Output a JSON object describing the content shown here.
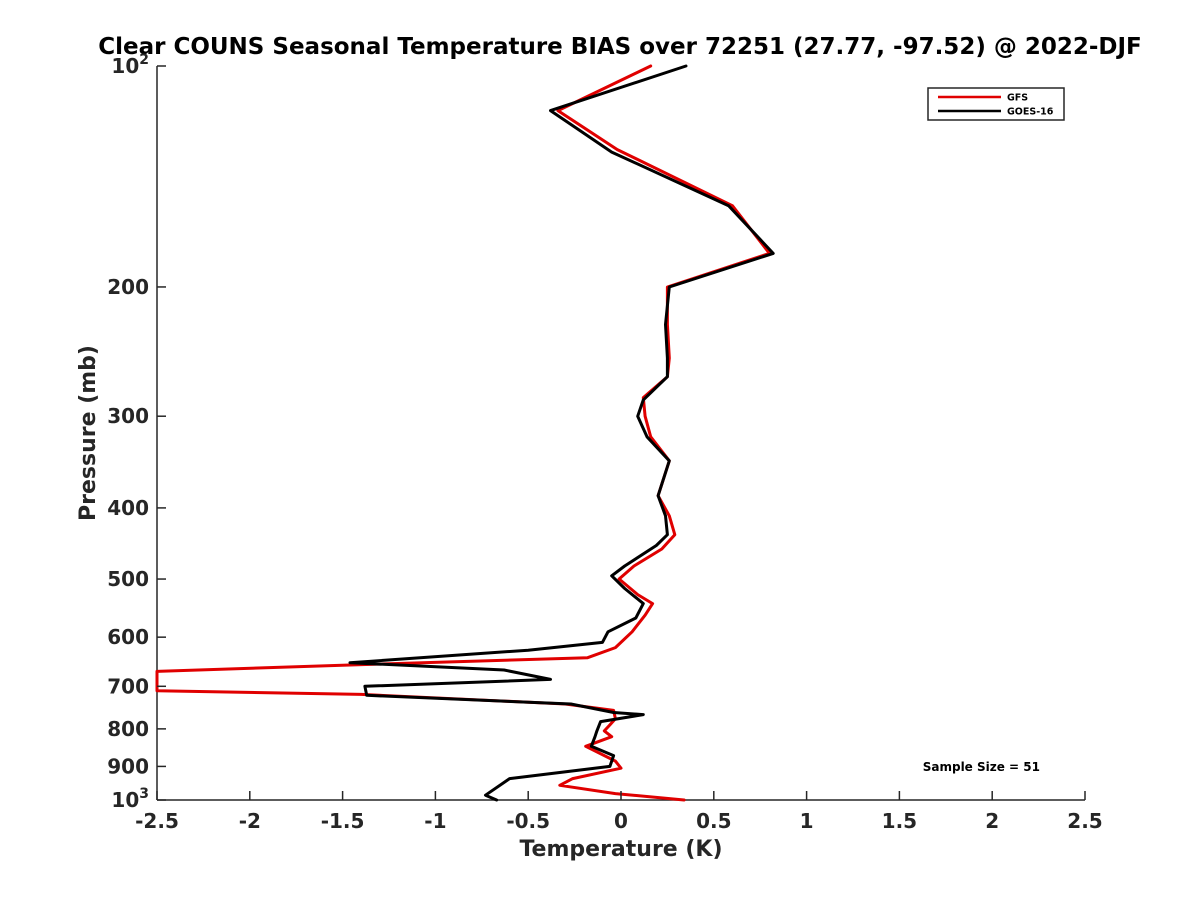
{
  "chart_data": {
    "type": "line",
    "title": "Clear COUNS Seasonal Temperature BIAS over 72251 (27.77, -97.52) @ 2022-DJF",
    "xlabel": "Temperature (K)",
    "ylabel": "Pressure (mb)",
    "xlim": [
      -2.5,
      2.5
    ],
    "ylim": [
      100,
      1000
    ],
    "y_scale": "log",
    "y_reversed": true,
    "grid": false,
    "legend_position": "top-right",
    "x_ticks": [
      {
        "value": -2.5,
        "label": "-2.5"
      },
      {
        "value": -2,
        "label": "-2"
      },
      {
        "value": -1.5,
        "label": "-1.5"
      },
      {
        "value": -1,
        "label": "-1"
      },
      {
        "value": -0.5,
        "label": "-0.5"
      },
      {
        "value": 0,
        "label": "0"
      },
      {
        "value": 0.5,
        "label": "0.5"
      },
      {
        "value": 1,
        "label": "1"
      },
      {
        "value": 1.5,
        "label": "1.5"
      },
      {
        "value": 2,
        "label": "2"
      },
      {
        "value": 2.5,
        "label": "2.5"
      }
    ],
    "y_ticks": [
      {
        "value": 100,
        "base": "10",
        "exp": "2"
      },
      {
        "value": 200,
        "label": "200"
      },
      {
        "value": 300,
        "label": "300"
      },
      {
        "value": 400,
        "label": "400"
      },
      {
        "value": 500,
        "label": "500"
      },
      {
        "value": 600,
        "label": "600"
      },
      {
        "value": 700,
        "label": "700"
      },
      {
        "value": 800,
        "label": "800"
      },
      {
        "value": 900,
        "label": "900"
      },
      {
        "value": 1000,
        "base": "10",
        "exp": "3"
      }
    ],
    "series": [
      {
        "name": "GFS",
        "color": "#e00000",
        "points": [
          {
            "x": 0.16,
            "y": 100
          },
          {
            "x": -0.34,
            "y": 115
          },
          {
            "x": -0.02,
            "y": 130
          },
          {
            "x": 0.6,
            "y": 155
          },
          {
            "x": 0.8,
            "y": 180
          },
          {
            "x": 0.25,
            "y": 200
          },
          {
            "x": 0.25,
            "y": 225
          },
          {
            "x": 0.26,
            "y": 250
          },
          {
            "x": 0.25,
            "y": 265
          },
          {
            "x": 0.12,
            "y": 283
          },
          {
            "x": 0.13,
            "y": 300
          },
          {
            "x": 0.16,
            "y": 320
          },
          {
            "x": 0.26,
            "y": 345
          },
          {
            "x": 0.2,
            "y": 385
          },
          {
            "x": 0.26,
            "y": 410
          },
          {
            "x": 0.29,
            "y": 435
          },
          {
            "x": 0.22,
            "y": 455
          },
          {
            "x": 0.07,
            "y": 480
          },
          {
            "x": -0.01,
            "y": 500
          },
          {
            "x": 0.09,
            "y": 525
          },
          {
            "x": 0.17,
            "y": 540
          },
          {
            "x": 0.13,
            "y": 560
          },
          {
            "x": 0.06,
            "y": 590
          },
          {
            "x": -0.03,
            "y": 620
          },
          {
            "x": -0.18,
            "y": 640
          },
          {
            "x": -1.48,
            "y": 655
          },
          {
            "x": -2.5,
            "y": 668
          },
          {
            "x": -2.5,
            "y": 710
          },
          {
            "x": -1.4,
            "y": 718
          },
          {
            "x": -0.3,
            "y": 740
          },
          {
            "x": -0.04,
            "y": 755
          },
          {
            "x": -0.03,
            "y": 775
          },
          {
            "x": -0.06,
            "y": 790
          },
          {
            "x": -0.09,
            "y": 805
          },
          {
            "x": -0.05,
            "y": 820
          },
          {
            "x": -0.19,
            "y": 845
          },
          {
            "x": -0.03,
            "y": 885
          },
          {
            "x": 0.0,
            "y": 905
          },
          {
            "x": -0.26,
            "y": 935
          },
          {
            "x": -0.33,
            "y": 955
          },
          {
            "x": -0.03,
            "y": 980
          },
          {
            "x": 0.34,
            "y": 1000
          }
        ]
      },
      {
        "name": "GOES-16",
        "color": "#000000",
        "points": [
          {
            "x": 0.35,
            "y": 100
          },
          {
            "x": -0.38,
            "y": 115
          },
          {
            "x": -0.05,
            "y": 131
          },
          {
            "x": 0.58,
            "y": 155
          },
          {
            "x": 0.82,
            "y": 180
          },
          {
            "x": 0.26,
            "y": 200
          },
          {
            "x": 0.24,
            "y": 225
          },
          {
            "x": 0.25,
            "y": 250
          },
          {
            "x": 0.25,
            "y": 265
          },
          {
            "x": 0.12,
            "y": 285
          },
          {
            "x": 0.09,
            "y": 300
          },
          {
            "x": 0.14,
            "y": 320
          },
          {
            "x": 0.26,
            "y": 345
          },
          {
            "x": 0.2,
            "y": 385
          },
          {
            "x": 0.24,
            "y": 410
          },
          {
            "x": 0.25,
            "y": 435
          },
          {
            "x": 0.19,
            "y": 450
          },
          {
            "x": 0.02,
            "y": 480
          },
          {
            "x": -0.05,
            "y": 495
          },
          {
            "x": 0.02,
            "y": 515
          },
          {
            "x": 0.12,
            "y": 540
          },
          {
            "x": 0.08,
            "y": 565
          },
          {
            "x": -0.07,
            "y": 590
          },
          {
            "x": -0.1,
            "y": 610
          },
          {
            "x": -0.5,
            "y": 625
          },
          {
            "x": -1.46,
            "y": 650
          },
          {
            "x": -0.63,
            "y": 665
          },
          {
            "x": -0.38,
            "y": 685
          },
          {
            "x": -1.38,
            "y": 700
          },
          {
            "x": -1.37,
            "y": 720
          },
          {
            "x": -0.27,
            "y": 740
          },
          {
            "x": -0.04,
            "y": 760
          },
          {
            "x": 0.12,
            "y": 765
          },
          {
            "x": -0.11,
            "y": 782
          },
          {
            "x": -0.13,
            "y": 805
          },
          {
            "x": -0.14,
            "y": 820
          },
          {
            "x": -0.16,
            "y": 845
          },
          {
            "x": -0.04,
            "y": 870
          },
          {
            "x": -0.06,
            "y": 900
          },
          {
            "x": -0.6,
            "y": 935
          },
          {
            "x": -0.73,
            "y": 985
          },
          {
            "x": -0.67,
            "y": 1000
          }
        ]
      }
    ],
    "annotation": "Sample Size = 51"
  }
}
